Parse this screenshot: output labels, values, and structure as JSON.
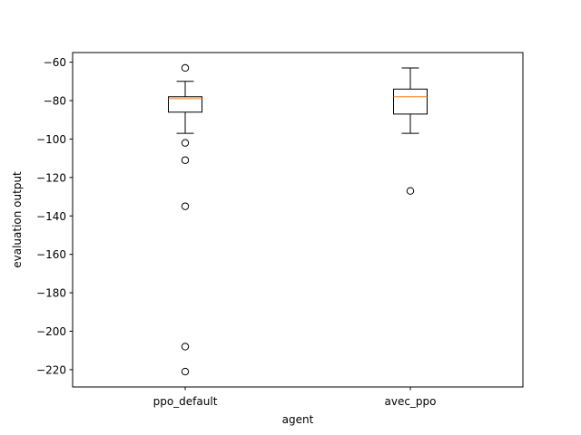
{
  "chart_data": {
    "type": "box",
    "title": "",
    "xlabel": "agent",
    "ylabel": "evaluation output",
    "ylim": [
      -229,
      -55
    ],
    "yticks": [
      -60,
      -80,
      -100,
      -120,
      -140,
      -160,
      -180,
      -200,
      -220
    ],
    "grid": false,
    "categories": [
      "ppo_default",
      "avec_ppo"
    ],
    "boxes": [
      {
        "name": "ppo_default",
        "whisker_low": -97,
        "q1": -86,
        "median": -79,
        "q3": -78,
        "whisker_high": -70,
        "outliers": [
          -63,
          -102,
          -111,
          -135,
          -208,
          -221
        ]
      },
      {
        "name": "avec_ppo",
        "whisker_low": -97,
        "q1": -87,
        "median": -78,
        "q3": -74,
        "whisker_high": -63,
        "outliers": [
          -127
        ]
      }
    ],
    "colors": {
      "box": "#000000",
      "median": "#ff7f0e",
      "background": "#ffffff"
    }
  }
}
